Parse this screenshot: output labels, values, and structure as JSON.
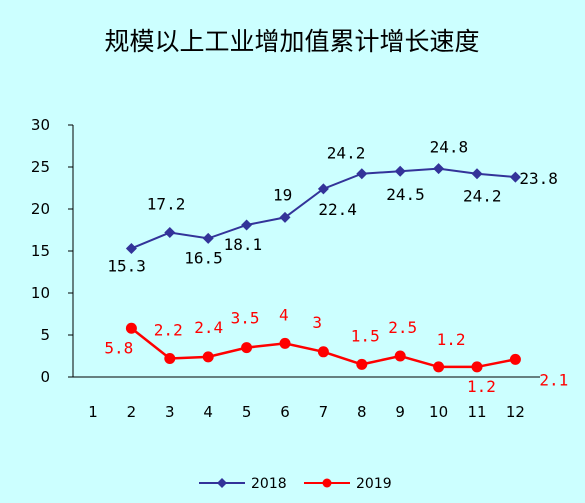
{
  "chart_data": {
    "type": "line",
    "title": "规模以上工业增加值累计增长速度",
    "categories": [
      "1",
      "2",
      "3",
      "4",
      "5",
      "6",
      "7",
      "8",
      "9",
      "10",
      "11",
      "12"
    ],
    "y_ticks": [
      "0",
      "5",
      "10",
      "15",
      "20",
      "25",
      "30"
    ],
    "ylim": [
      0,
      30
    ],
    "grid": false,
    "legend_position": "bottom",
    "series": [
      {
        "name": "2018",
        "color": "#333399",
        "marker": "diamond",
        "values": [
          null,
          15.3,
          17.2,
          16.5,
          18.1,
          19,
          22.4,
          24.2,
          24.5,
          24.8,
          24.2,
          23.8
        ],
        "labels": [
          "",
          "15.3",
          "17.2",
          "16.5",
          "18.1",
          "19",
          "22.4",
          "24.2",
          "24.5",
          "24.8",
          "24.2",
          "23.8"
        ]
      },
      {
        "name": "2019",
        "color": "#ff0000",
        "marker": "circle",
        "values": [
          null,
          5.8,
          2.2,
          2.4,
          3.5,
          4,
          3,
          1.5,
          2.5,
          1.2,
          1.2,
          2.1
        ],
        "labels": [
          "",
          "5.8",
          "2.2",
          "2.4",
          "3.5",
          "4",
          "3",
          "1.5",
          "2.5",
          "1.2",
          "1.2",
          "2.1"
        ]
      }
    ]
  }
}
